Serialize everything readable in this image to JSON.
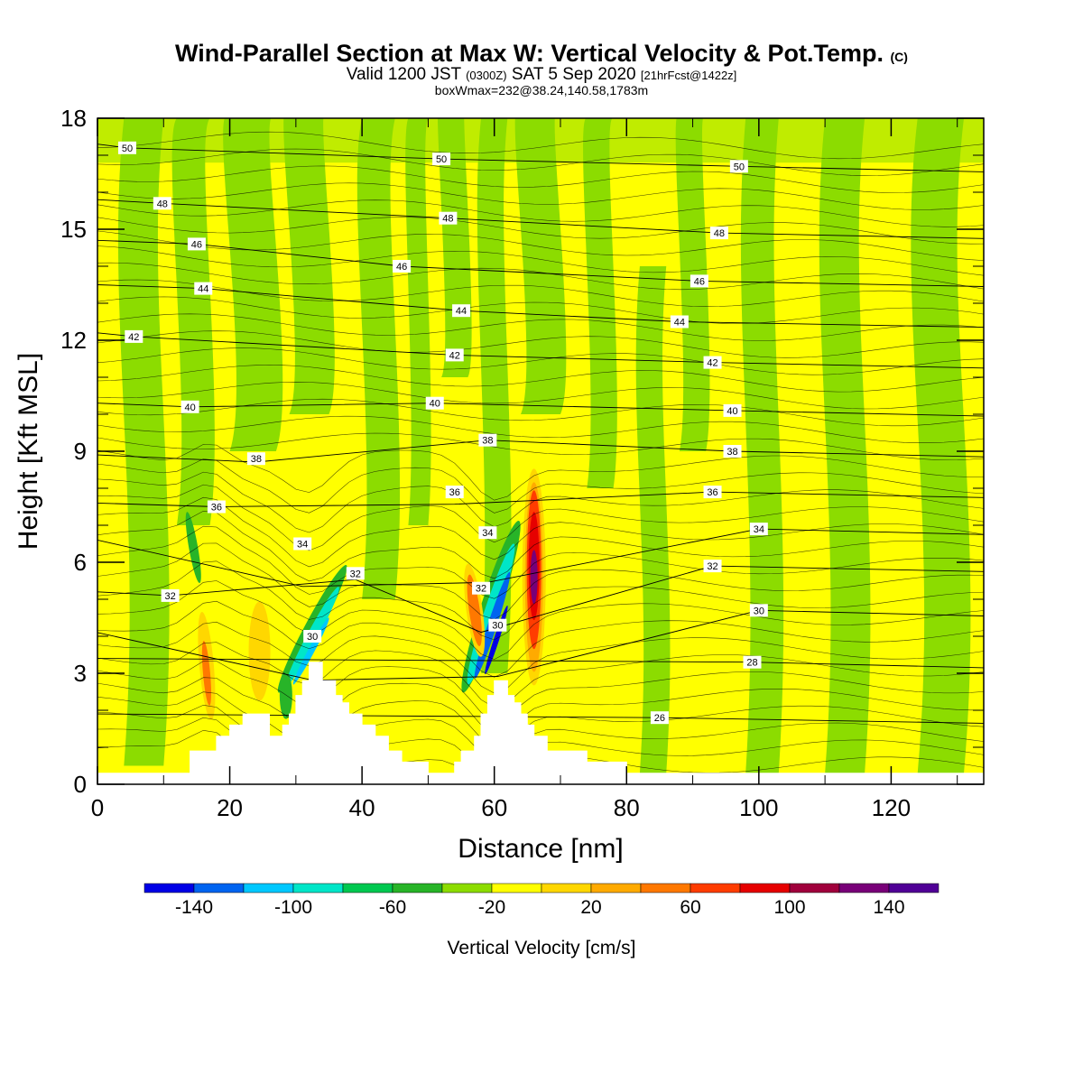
{
  "header": {
    "title": "Wind-Parallel Section at Max W: Vertical Velocity & Pot.Temp.",
    "copyright": "(C)",
    "valid_prefix": "Valid 1200 JST",
    "valid_utc": "(0300Z)",
    "valid_date": "SAT 5 Sep 2020",
    "forecast": "[21hrFcst@1422z]",
    "boxwmax": "boxWmax=232@38.24,140.58,1783m"
  },
  "chart_data": {
    "type": "heatmap",
    "xlabel": "Distance [nm]",
    "ylabel": "Height [Kft MSL]",
    "xlim": [
      0,
      134
    ],
    "ylim": [
      0,
      18
    ],
    "xticks": [
      0,
      20,
      40,
      60,
      80,
      100,
      120
    ],
    "yticks": [
      0,
      3,
      6,
      9,
      12,
      15,
      18
    ],
    "colorbar": {
      "label": "Vertical Velocity [cm/s]",
      "ticks": [
        -140,
        -100,
        -60,
        -20,
        20,
        60,
        100,
        140
      ],
      "bounds": [
        -160,
        -140,
        -120,
        -100,
        -80,
        -60,
        -40,
        -20,
        0,
        20,
        40,
        60,
        80,
        100,
        120,
        140,
        160
      ],
      "colors": [
        "#0000e6",
        "#0064f0",
        "#00c8ff",
        "#00e6c8",
        "#00c850",
        "#28b428",
        "#8cdc00",
        "#ffff00",
        "#ffd700",
        "#ffaa00",
        "#ff7800",
        "#ff3c00",
        "#e60000",
        "#a0003c",
        "#780078",
        "#500096"
      ]
    },
    "terrain": [
      [
        0,
        0.3
      ],
      [
        14,
        0.3
      ],
      [
        14,
        0.9
      ],
      [
        18,
        0.9
      ],
      [
        18,
        1.3
      ],
      [
        20,
        1.3
      ],
      [
        20,
        1.6
      ],
      [
        22,
        1.6
      ],
      [
        22,
        1.9
      ],
      [
        26,
        1.9
      ],
      [
        26,
        1.3
      ],
      [
        28,
        1.3
      ],
      [
        28,
        1.6
      ],
      [
        29,
        1.6
      ],
      [
        29,
        1.9
      ],
      [
        30,
        1.9
      ],
      [
        30,
        2.4
      ],
      [
        31,
        2.4
      ],
      [
        31,
        2.8
      ],
      [
        32,
        2.8
      ],
      [
        32,
        3.3
      ],
      [
        34,
        3.3
      ],
      [
        34,
        2.8
      ],
      [
        36,
        2.8
      ],
      [
        36,
        2.4
      ],
      [
        37,
        2.4
      ],
      [
        37,
        2.2
      ],
      [
        38,
        2.2
      ],
      [
        38,
        1.9
      ],
      [
        40,
        1.9
      ],
      [
        40,
        1.6
      ],
      [
        42,
        1.6
      ],
      [
        42,
        1.3
      ],
      [
        44,
        1.3
      ],
      [
        44,
        0.9
      ],
      [
        46,
        0.9
      ],
      [
        46,
        0.6
      ],
      [
        50,
        0.6
      ],
      [
        50,
        0.3
      ],
      [
        54,
        0.3
      ],
      [
        54,
        0.6
      ],
      [
        55,
        0.6
      ],
      [
        55,
        0.9
      ],
      [
        57,
        0.9
      ],
      [
        57,
        1.3
      ],
      [
        58,
        1.3
      ],
      [
        58,
        1.9
      ],
      [
        59,
        1.9
      ],
      [
        59,
        2.4
      ],
      [
        60,
        2.4
      ],
      [
        60,
        2.8
      ],
      [
        62,
        2.8
      ],
      [
        62,
        2.4
      ],
      [
        63,
        2.4
      ],
      [
        63,
        2.2
      ],
      [
        64,
        2.2
      ],
      [
        64,
        1.9
      ],
      [
        65,
        1.9
      ],
      [
        65,
        1.6
      ],
      [
        66,
        1.6
      ],
      [
        66,
        1.3
      ],
      [
        68,
        1.3
      ],
      [
        68,
        0.9
      ],
      [
        74,
        0.9
      ],
      [
        74,
        0.6
      ],
      [
        80,
        0.6
      ],
      [
        80,
        0.3
      ],
      [
        134,
        0.3
      ]
    ],
    "potential_temperature_contours": {
      "units": "°C",
      "labels": [
        {
          "value": 50,
          "x": 4.5,
          "y": 17.2
        },
        {
          "value": 50,
          "x": 52,
          "y": 16.9
        },
        {
          "value": 50,
          "x": 97,
          "y": 16.7
        },
        {
          "value": 48,
          "x": 9.8,
          "y": 15.7
        },
        {
          "value": 48,
          "x": 53,
          "y": 15.3
        },
        {
          "value": 48,
          "x": 94,
          "y": 14.9
        },
        {
          "value": 46,
          "x": 15,
          "y": 14.6
        },
        {
          "value": 46,
          "x": 46,
          "y": 14.0
        },
        {
          "value": 46,
          "x": 91,
          "y": 13.6
        },
        {
          "value": 44,
          "x": 16,
          "y": 13.4
        },
        {
          "value": 44,
          "x": 55,
          "y": 12.8
        },
        {
          "value": 44,
          "x": 88,
          "y": 12.5
        },
        {
          "value": 42,
          "x": 5.5,
          "y": 12.1
        },
        {
          "value": 42,
          "x": 54,
          "y": 11.6
        },
        {
          "value": 42,
          "x": 93,
          "y": 11.4
        },
        {
          "value": 40,
          "x": 14,
          "y": 10.2
        },
        {
          "value": 40,
          "x": 51,
          "y": 10.3
        },
        {
          "value": 40,
          "x": 96,
          "y": 10.1
        },
        {
          "value": 38,
          "x": 24,
          "y": 8.8
        },
        {
          "value": 38,
          "x": 59,
          "y": 9.3
        },
        {
          "value": 38,
          "x": 96,
          "y": 9.0
        },
        {
          "value": 36,
          "x": 18,
          "y": 7.5
        },
        {
          "value": 36,
          "x": 54,
          "y": 7.9
        },
        {
          "value": 36,
          "x": 93,
          "y": 7.9
        },
        {
          "value": 34,
          "x": 31,
          "y": 6.5
        },
        {
          "value": 34,
          "x": 59,
          "y": 6.8
        },
        {
          "value": 34,
          "x": 100,
          "y": 6.9
        },
        {
          "value": 32,
          "x": 11,
          "y": 5.1
        },
        {
          "value": 32,
          "x": 39,
          "y": 5.7
        },
        {
          "value": 32,
          "x": 58,
          "y": 5.3
        },
        {
          "value": 32,
          "x": 93,
          "y": 5.9
        },
        {
          "value": 30,
          "x": 32.5,
          "y": 4.0
        },
        {
          "value": 30,
          "x": 60.5,
          "y": 4.3
        },
        {
          "value": 30,
          "x": 100,
          "y": 4.7
        },
        {
          "value": 28,
          "x": 99,
          "y": 3.3
        },
        {
          "value": 26,
          "x": 85,
          "y": 1.8
        }
      ]
    },
    "vertical_velocity_features": [
      {
        "x": 32.5,
        "y_range": [
          1.8,
          6.2
        ],
        "min_cm_s": -110
      },
      {
        "x": 59.5,
        "y_range": [
          2.5,
          7.2
        ],
        "min_cm_s": -150
      },
      {
        "x": 66,
        "y_range": [
          2.5,
          8.5
        ],
        "max_cm_s": 150
      },
      {
        "x": 57,
        "y_range": [
          3.5,
          6.0
        ],
        "max_cm_s": 80
      },
      {
        "x": 16.5,
        "y_range": [
          2.0,
          4.5
        ],
        "max_cm_s": 60
      },
      {
        "x": 24.5,
        "y_range": [
          2.5,
          4.8
        ],
        "max_cm_s": 35
      }
    ]
  }
}
